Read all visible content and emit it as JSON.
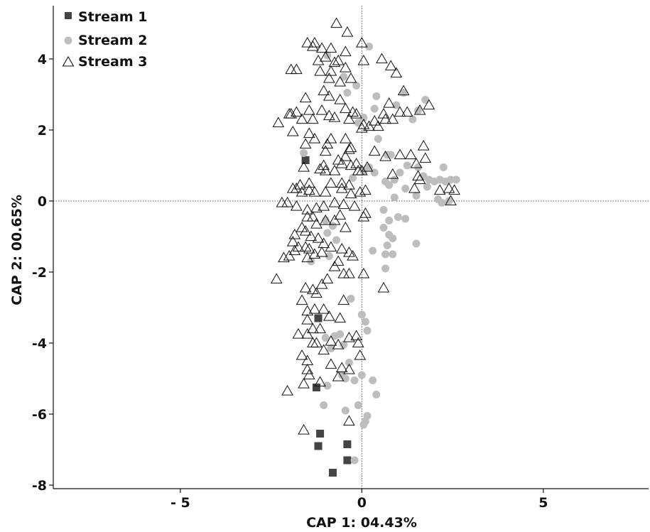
{
  "chart_data": {
    "type": "scatter",
    "xlabel": "CAP 1: 04.43%",
    "ylabel": "CAP 2: 00.65%",
    "xlim": [
      -8.5,
      7.9
    ],
    "ylim": [
      -8.1,
      5.5
    ],
    "xticks": [
      -5,
      0,
      5
    ],
    "xtick_labels": [
      "- 5",
      "0",
      "5"
    ],
    "yticks": [
      4,
      2,
      0,
      -2,
      -4,
      -6,
      -8
    ],
    "ytick_labels": [
      "4",
      "2",
      "0",
      "-2",
      "-4",
      "-6",
      "-8"
    ],
    "reference_lines": {
      "x": 0,
      "y": 0,
      "style": "dotted"
    },
    "legend_position": "top-left",
    "colors": {
      "stream1": "#444444",
      "stream2": "#bdbdbd",
      "stream3_stroke": "#111111"
    },
    "series": [
      {
        "name": "Stream 1",
        "marker": "square",
        "points": [
          [
            -1.55,
            1.15
          ],
          [
            -1.2,
            -3.3
          ],
          [
            -1.25,
            -5.25
          ],
          [
            -1.15,
            -6.55
          ],
          [
            -1.2,
            -6.9
          ],
          [
            -0.4,
            -6.85
          ],
          [
            -0.4,
            -7.3
          ],
          [
            -0.8,
            -7.65
          ]
        ]
      },
      {
        "name": "Stream 2",
        "marker": "circle",
        "points": [
          [
            0.2,
            4.35
          ],
          [
            -0.95,
            4.1
          ],
          [
            -0.5,
            3.5
          ],
          [
            -0.4,
            3.05
          ],
          [
            -0.15,
            3.25
          ],
          [
            0.4,
            2.95
          ],
          [
            0.95,
            2.7
          ],
          [
            1.15,
            3.05
          ],
          [
            1.75,
            2.85
          ],
          [
            1.55,
            2.55
          ],
          [
            1.4,
            2.3
          ],
          [
            0.35,
            2.6
          ],
          [
            0.05,
            2.35
          ],
          [
            -0.1,
            2.2
          ],
          [
            0.45,
            1.75
          ],
          [
            0.8,
            1.3
          ],
          [
            0.7,
            1.3
          ],
          [
            -1.6,
            1.35
          ],
          [
            -0.25,
            0.65
          ],
          [
            0.05,
            0.85
          ],
          [
            0.2,
            0.95
          ],
          [
            0.35,
            0.8
          ],
          [
            0.65,
            0.55
          ],
          [
            0.9,
            0.6
          ],
          [
            1.05,
            0.8
          ],
          [
            1.25,
            1.0
          ],
          [
            1.55,
            0.95
          ],
          [
            1.7,
            0.7
          ],
          [
            1.85,
            0.6
          ],
          [
            2.0,
            0.55
          ],
          [
            2.15,
            0.6
          ],
          [
            2.3,
            0.55
          ],
          [
            2.45,
            0.6
          ],
          [
            2.6,
            0.6
          ],
          [
            2.25,
            0.95
          ],
          [
            1.8,
            0.4
          ],
          [
            1.5,
            0.15
          ],
          [
            1.2,
            0.35
          ],
          [
            0.75,
            0.45
          ],
          [
            0.9,
            0.1
          ],
          [
            2.1,
            0.05
          ],
          [
            2.4,
            0.0
          ],
          [
            2.2,
            -0.05
          ],
          [
            0.6,
            -0.25
          ],
          [
            0.75,
            -0.55
          ],
          [
            1.0,
            -0.45
          ],
          [
            1.2,
            -0.5
          ],
          [
            0.6,
            -0.75
          ],
          [
            0.75,
            -0.95
          ],
          [
            0.85,
            -1.05
          ],
          [
            0.7,
            -1.25
          ],
          [
            1.5,
            -1.2
          ],
          [
            0.3,
            -1.4
          ],
          [
            0.65,
            -1.5
          ],
          [
            0.85,
            -1.5
          ],
          [
            0.65,
            -1.9
          ],
          [
            -1.0,
            -0.55
          ],
          [
            -0.8,
            -0.7
          ],
          [
            -0.95,
            -0.9
          ],
          [
            -0.7,
            -1.1
          ],
          [
            -1.4,
            -1.7
          ],
          [
            -0.9,
            -1.55
          ],
          [
            -0.3,
            -2.75
          ],
          [
            0.0,
            -3.2
          ],
          [
            0.1,
            -3.4
          ],
          [
            0.15,
            -3.65
          ],
          [
            -0.6,
            -3.75
          ],
          [
            -0.75,
            -3.8
          ],
          [
            -1.0,
            -3.85
          ],
          [
            -0.5,
            -4.05
          ],
          [
            -0.85,
            -4.15
          ],
          [
            -0.35,
            -4.55
          ],
          [
            -0.55,
            -4.9
          ],
          [
            -0.45,
            -5.0
          ],
          [
            0.0,
            -4.9
          ],
          [
            0.3,
            -5.05
          ],
          [
            -0.2,
            -5.05
          ],
          [
            -0.95,
            -5.2
          ],
          [
            0.4,
            -5.45
          ],
          [
            -0.1,
            -5.75
          ],
          [
            -1.05,
            -5.75
          ],
          [
            -0.45,
            -5.9
          ],
          [
            0.15,
            -6.05
          ],
          [
            0.1,
            -6.2
          ],
          [
            0.05,
            -6.3
          ],
          [
            -0.2,
            -7.3
          ]
        ]
      },
      {
        "name": "Stream 3",
        "marker": "triangle-open",
        "points": [
          [
            -0.7,
            5.0
          ],
          [
            -0.4,
            4.75
          ],
          [
            -1.3,
            4.45
          ],
          [
            -1.1,
            4.3
          ],
          [
            -1.5,
            4.45
          ],
          [
            -1.35,
            4.35
          ],
          [
            -0.85,
            4.3
          ],
          [
            -0.45,
            4.2
          ],
          [
            0.0,
            4.45
          ],
          [
            0.05,
            3.95
          ],
          [
            0.55,
            4.0
          ],
          [
            0.8,
            3.8
          ],
          [
            0.95,
            3.6
          ],
          [
            -1.0,
            4.05
          ],
          [
            -1.2,
            3.95
          ],
          [
            -0.75,
            3.9
          ],
          [
            -0.65,
            3.95
          ],
          [
            -1.95,
            3.7
          ],
          [
            -1.8,
            3.7
          ],
          [
            -1.15,
            3.65
          ],
          [
            -0.85,
            3.65
          ],
          [
            -0.45,
            3.75
          ],
          [
            -0.3,
            3.45
          ],
          [
            -0.9,
            3.45
          ],
          [
            -0.6,
            3.35
          ],
          [
            -1.05,
            3.1
          ],
          [
            -0.9,
            2.95
          ],
          [
            -0.6,
            2.85
          ],
          [
            -1.55,
            2.9
          ],
          [
            -1.45,
            2.55
          ],
          [
            -1.1,
            2.55
          ],
          [
            -0.45,
            2.6
          ],
          [
            -0.25,
            2.5
          ],
          [
            -0.15,
            2.45
          ],
          [
            -0.35,
            2.3
          ],
          [
            -0.75,
            2.35
          ],
          [
            -0.9,
            2.4
          ],
          [
            -1.35,
            2.3
          ],
          [
            -1.65,
            2.3
          ],
          [
            -1.8,
            2.5
          ],
          [
            -1.95,
            2.45
          ],
          [
            -2.0,
            2.45
          ],
          [
            -2.3,
            2.2
          ],
          [
            -1.9,
            1.95
          ],
          [
            -1.45,
            1.9
          ],
          [
            -1.3,
            1.75
          ],
          [
            -0.95,
            1.6
          ],
          [
            -0.85,
            1.75
          ],
          [
            -1.0,
            1.4
          ],
          [
            -1.55,
            1.6
          ],
          [
            -0.45,
            1.75
          ],
          [
            -0.35,
            1.45
          ],
          [
            -0.3,
            1.5
          ],
          [
            -0.45,
            1.25
          ],
          [
            -0.65,
            1.15
          ],
          [
            -0.55,
            1.05
          ],
          [
            -0.3,
            1.0
          ],
          [
            -0.15,
            1.05
          ],
          [
            -0.1,
            0.85
          ],
          [
            -0.75,
            0.85
          ],
          [
            -1.0,
            0.85
          ],
          [
            -1.05,
            1.0
          ],
          [
            -1.15,
            0.9
          ],
          [
            -1.6,
            0.95
          ],
          [
            -1.45,
            0.5
          ],
          [
            -1.7,
            0.45
          ],
          [
            -1.8,
            0.35
          ],
          [
            -1.9,
            0.35
          ],
          [
            -1.65,
            0.25
          ],
          [
            -1.45,
            0.3
          ],
          [
            -1.3,
            0.25
          ],
          [
            -1.0,
            0.25
          ],
          [
            -0.85,
            0.5
          ],
          [
            -0.55,
            0.5
          ],
          [
            -0.35,
            0.45
          ],
          [
            -0.55,
            0.35
          ],
          [
            -0.3,
            0.2
          ],
          [
            -0.05,
            0.25
          ],
          [
            0.1,
            0.3
          ],
          [
            0.0,
            0.85
          ],
          [
            0.35,
            1.4
          ],
          [
            0.65,
            1.25
          ],
          [
            0.85,
            0.75
          ],
          [
            0.15,
            0.95
          ],
          [
            1.05,
            1.3
          ],
          [
            1.35,
            1.3
          ],
          [
            1.5,
            1.05
          ],
          [
            1.55,
            0.7
          ],
          [
            1.45,
            0.35
          ],
          [
            1.6,
            0.6
          ],
          [
            1.7,
            1.55
          ],
          [
            1.75,
            1.2
          ],
          [
            2.15,
            0.3
          ],
          [
            2.4,
            0.35
          ],
          [
            2.55,
            0.3
          ],
          [
            2.45,
            0.0
          ],
          [
            1.25,
            2.5
          ],
          [
            1.05,
            2.5
          ],
          [
            1.15,
            3.1
          ],
          [
            1.6,
            2.55
          ],
          [
            1.85,
            2.7
          ],
          [
            0.6,
            2.45
          ],
          [
            0.65,
            2.3
          ],
          [
            0.45,
            2.1
          ],
          [
            0.35,
            2.25
          ],
          [
            0.2,
            2.1
          ],
          [
            0.0,
            2.05
          ],
          [
            0.05,
            2.15
          ],
          [
            0.75,
            2.75
          ],
          [
            0.85,
            2.3
          ],
          [
            -2.2,
            -0.05
          ],
          [
            -2.05,
            -0.05
          ],
          [
            -1.8,
            -0.15
          ],
          [
            -1.5,
            -0.25
          ],
          [
            -1.25,
            -0.2
          ],
          [
            -1.05,
            -0.15
          ],
          [
            -0.75,
            -0.05
          ],
          [
            -0.5,
            -0.1
          ],
          [
            -0.2,
            -0.15
          ],
          [
            0.1,
            -0.35
          ],
          [
            -1.5,
            -0.45
          ],
          [
            -1.35,
            -0.45
          ],
          [
            -1.25,
            -0.65
          ],
          [
            -1.0,
            -0.55
          ],
          [
            -0.75,
            -0.55
          ],
          [
            -0.6,
            -0.4
          ],
          [
            -0.45,
            -0.75
          ],
          [
            -1.65,
            -0.75
          ],
          [
            -1.55,
            -0.85
          ],
          [
            -1.4,
            -1.0
          ],
          [
            -1.2,
            -1.05
          ],
          [
            -1.05,
            -1.2
          ],
          [
            -1.85,
            -0.95
          ],
          [
            -1.9,
            -1.15
          ],
          [
            -1.75,
            -1.3
          ],
          [
            -1.55,
            -1.3
          ],
          [
            -1.45,
            -1.35
          ],
          [
            -1.85,
            -1.4
          ],
          [
            -2.0,
            -1.55
          ],
          [
            -2.15,
            -1.6
          ],
          [
            -1.5,
            -1.6
          ],
          [
            -1.3,
            -1.5
          ],
          [
            -1.1,
            -1.45
          ],
          [
            -0.85,
            -1.3
          ],
          [
            -0.55,
            -1.35
          ],
          [
            -0.35,
            -1.45
          ],
          [
            -0.25,
            -1.55
          ],
          [
            -0.65,
            -1.7
          ],
          [
            -0.75,
            -1.85
          ],
          [
            -0.5,
            -2.05
          ],
          [
            -0.35,
            -2.05
          ],
          [
            -0.95,
            -2.2
          ],
          [
            -1.1,
            -2.35
          ],
          [
            -1.25,
            -2.6
          ],
          [
            -1.35,
            -2.5
          ],
          [
            -1.55,
            -2.45
          ],
          [
            -1.65,
            -2.8
          ],
          [
            -1.5,
            -3.1
          ],
          [
            -1.3,
            -3.05
          ],
          [
            -1.05,
            -3.05
          ],
          [
            -0.9,
            -3.25
          ],
          [
            -0.5,
            -2.8
          ],
          [
            -0.6,
            -3.3
          ],
          [
            -1.5,
            -3.35
          ],
          [
            -1.35,
            -3.6
          ],
          [
            -1.15,
            -3.6
          ],
          [
            -1.5,
            -3.75
          ],
          [
            -1.75,
            -3.75
          ],
          [
            -1.25,
            -4.0
          ],
          [
            -0.85,
            -3.95
          ],
          [
            -0.65,
            -4.05
          ],
          [
            -0.35,
            -3.85
          ],
          [
            -0.15,
            -3.8
          ],
          [
            -0.1,
            -4.0
          ],
          [
            -0.05,
            -4.35
          ],
          [
            -0.35,
            -4.75
          ],
          [
            -0.55,
            -4.7
          ],
          [
            -0.85,
            -4.6
          ],
          [
            -1.65,
            -4.35
          ],
          [
            -1.5,
            -4.5
          ],
          [
            -1.5,
            -4.75
          ],
          [
            -1.45,
            -4.9
          ],
          [
            -1.6,
            -5.15
          ],
          [
            -1.15,
            -5.1
          ],
          [
            -0.65,
            -4.95
          ],
          [
            -1.35,
            -4.0
          ],
          [
            -1.05,
            -4.2
          ],
          [
            -0.35,
            -6.2
          ],
          [
            -2.05,
            -5.35
          ],
          [
            -1.6,
            -6.45
          ],
          [
            -2.35,
            -2.2
          ],
          [
            0.6,
            -2.45
          ],
          [
            0.05,
            -2.05
          ],
          [
            0.05,
            -0.45
          ]
        ]
      }
    ]
  },
  "legend": {
    "items": [
      {
        "label": "Stream 1",
        "marker": "square"
      },
      {
        "label": "Stream 2",
        "marker": "circle"
      },
      {
        "label": "Stream 3",
        "marker": "triangle-open"
      }
    ]
  }
}
